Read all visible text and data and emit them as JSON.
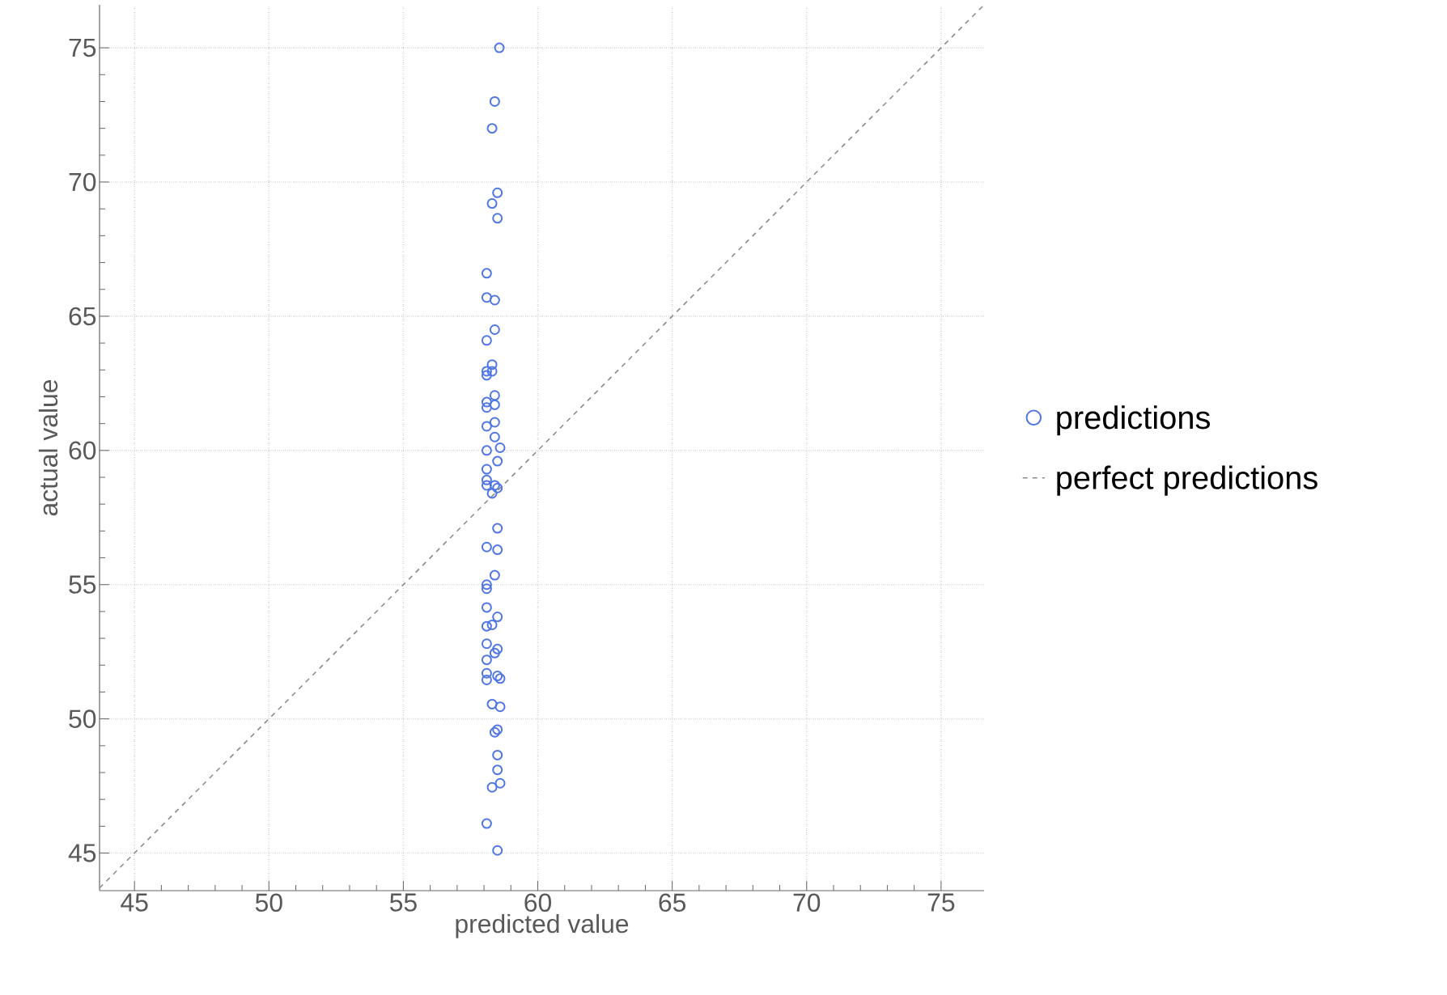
{
  "chart_data": {
    "type": "scatter",
    "xlabel": "predicted value",
    "ylabel": "actual value",
    "xlim": [
      43.7,
      76.6
    ],
    "ylim": [
      43.6,
      76.6
    ],
    "xticks": [
      45,
      50,
      55,
      60,
      65,
      70,
      75
    ],
    "yticks": [
      45,
      50,
      55,
      60,
      65,
      70,
      75
    ],
    "grid": true,
    "legend": "right",
    "series": [
      {
        "name": "predictions",
        "marker": "circle",
        "color": "#4f76e3",
        "x": [
          58.57,
          58.4,
          58.3,
          58.5,
          58.3,
          58.5,
          58.1,
          58.1,
          58.4,
          58.4,
          58.1,
          58.3,
          58.1,
          58.3,
          58.1,
          58.4,
          58.1,
          58.1,
          58.4,
          58.4,
          58.1,
          58.4,
          58.6,
          58.1,
          58.5,
          58.1,
          58.1,
          58.1,
          58.4,
          58.5,
          58.3,
          58.5,
          58.1,
          58.5,
          58.4,
          58.1,
          58.1,
          58.5,
          58.1,
          58.3,
          58.1,
          58.5,
          58.4,
          58.1,
          58.1,
          58.1,
          58.5,
          58.6,
          58.1,
          58.3,
          58.6,
          58.4,
          58.5,
          58.5,
          58.5,
          58.3,
          58.6,
          58.1,
          58.5
        ],
        "values": [
          75.0,
          73.0,
          72.0,
          69.6,
          69.2,
          68.65,
          66.6,
          65.7,
          65.6,
          64.5,
          64.1,
          63.2,
          62.95,
          62.95,
          62.8,
          62.05,
          61.8,
          61.6,
          61.7,
          61.05,
          60.9,
          60.5,
          60.1,
          60.0,
          59.6,
          59.3,
          58.9,
          58.7,
          58.7,
          58.6,
          58.4,
          57.1,
          56.4,
          56.3,
          55.35,
          55.0,
          54.85,
          53.8,
          54.15,
          53.5,
          53.45,
          52.6,
          52.45,
          52.8,
          52.2,
          51.7,
          51.6,
          51.5,
          51.45,
          50.55,
          50.45,
          49.5,
          49.6,
          48.65,
          48.1,
          47.45,
          47.6,
          46.1,
          45.1
        ]
      },
      {
        "name": "perfect predictions",
        "type": "line",
        "line_style": "dashed",
        "marker": "none",
        "color": "#8c8c8c",
        "x": [
          43.7,
          76.6
        ],
        "values": [
          43.7,
          76.6
        ]
      }
    ]
  }
}
